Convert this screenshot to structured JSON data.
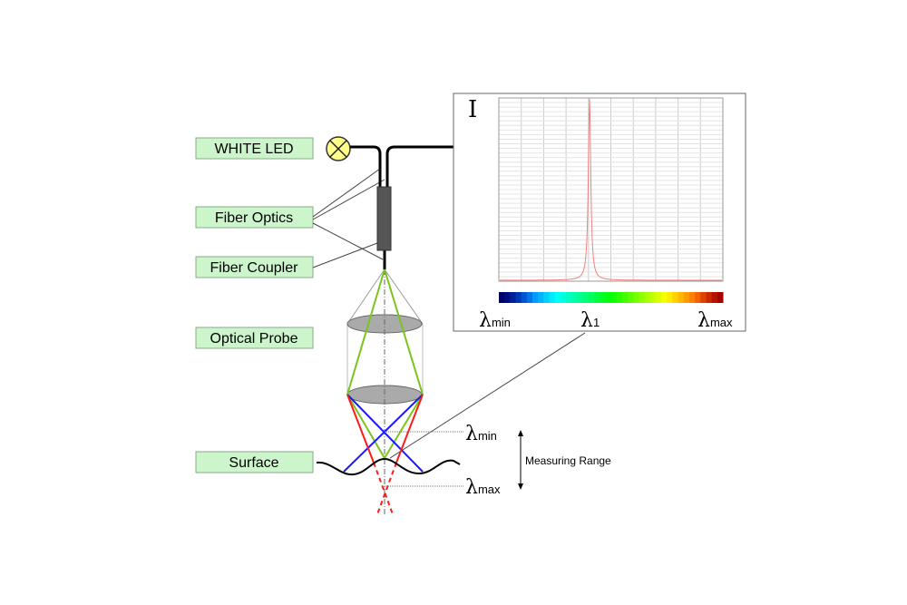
{
  "labels": {
    "white_led": "WHITE LED",
    "fiber_optics": "Fiber Optics",
    "fiber_coupler": "Fiber Coupler",
    "optical_probe": "Optical Probe",
    "surface": "Surface"
  },
  "spectrum": {
    "y_label": "I",
    "lambda": "λ",
    "lambda_min_sub": "min",
    "lambda_1_sub": "1",
    "lambda_max_sub": "max"
  },
  "measurement": {
    "lambda_min_sub": "min",
    "lambda_max_sub": "max",
    "range_label": "Measuring Range"
  },
  "colors": {
    "label_fill": "#ccf5cc",
    "peak": "#f08080",
    "green_ray": "#7ac41c",
    "blue_ray": "#1a1aff",
    "red_ray": "#ff1a1a",
    "lamp": "#ffff88"
  }
}
